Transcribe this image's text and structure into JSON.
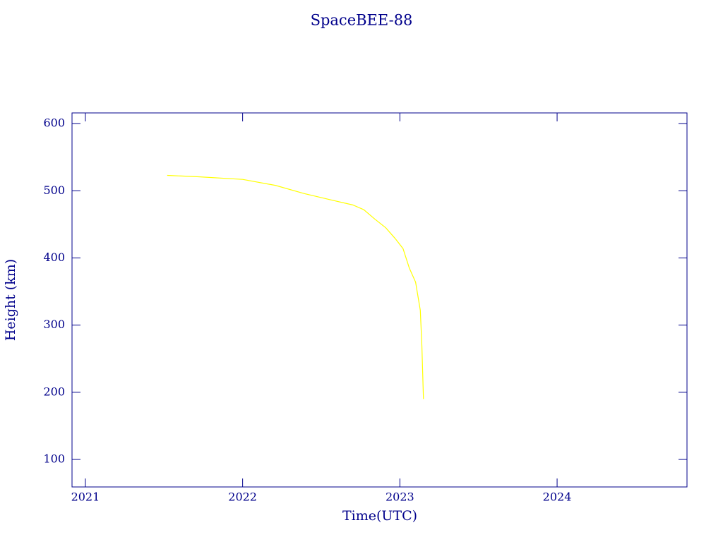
{
  "chart_data": {
    "type": "line",
    "title": "SpaceBEE-88",
    "x_label": "Time(UTC)",
    "y_label": "Height (km)",
    "series": [
      {
        "name": "SpaceBEE-88",
        "color": "#ffff00",
        "x": [
          2021.52,
          2021.71,
          2022.0,
          2022.21,
          2022.39,
          2022.57,
          2022.7,
          2022.77,
          2022.84,
          2022.91,
          2022.97,
          2023.02,
          2023.06,
          2023.1,
          2023.13,
          2023.14,
          2023.15
        ],
        "values": [
          523,
          521,
          517,
          508,
          496,
          486,
          479,
          472,
          458,
          445,
          429,
          414,
          385,
          364,
          322,
          269,
          190
        ]
      }
    ],
    "xlim": [
      2020.915,
      2024.826
    ],
    "xticks": [
      2021,
      2022,
      2023,
      2024
    ],
    "ylim": [
      59,
      616
    ],
    "yticks": [
      100,
      200,
      300,
      400,
      500,
      600
    ],
    "axis_color": "#00008b"
  }
}
